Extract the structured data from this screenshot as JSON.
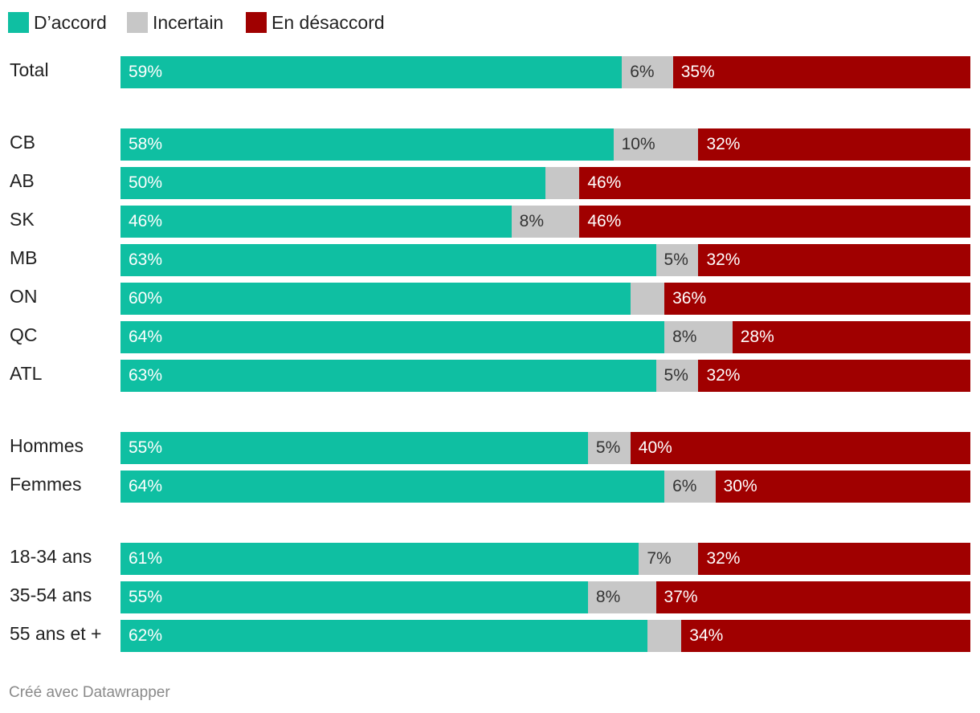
{
  "chart_data": {
    "type": "stacked-bar-horizontal",
    "unit": "%",
    "series": [
      {
        "name": "D’accord",
        "color": "#0fbfa2"
      },
      {
        "name": "Incertain",
        "color": "#c7c7c7"
      },
      {
        "name": "En désaccord",
        "color": "#a00000"
      }
    ],
    "rows": [
      {
        "label": "Total",
        "values": [
          59,
          6,
          35
        ],
        "labels": [
          "59%",
          "6%",
          "35%"
        ]
      },
      {
        "label": "CB",
        "values": [
          58,
          10,
          32
        ],
        "labels": [
          "58%",
          "10%",
          "32%"
        ]
      },
      {
        "label": "AB",
        "values": [
          50,
          4,
          46
        ],
        "labels": [
          "50%",
          "",
          "46%"
        ]
      },
      {
        "label": "SK",
        "values": [
          46,
          8,
          46
        ],
        "labels": [
          "46%",
          "8%",
          "46%"
        ]
      },
      {
        "label": "MB",
        "values": [
          63,
          5,
          32
        ],
        "labels": [
          "63%",
          "5%",
          "32%"
        ]
      },
      {
        "label": "ON",
        "values": [
          60,
          4,
          36
        ],
        "labels": [
          "60%",
          "",
          "36%"
        ]
      },
      {
        "label": "QC",
        "values": [
          64,
          8,
          28
        ],
        "labels": [
          "64%",
          "8%",
          "28%"
        ]
      },
      {
        "label": "ATL",
        "values": [
          63,
          5,
          32
        ],
        "labels": [
          "63%",
          "5%",
          "32%"
        ]
      },
      {
        "label": "Hommes",
        "values": [
          55,
          5,
          40
        ],
        "labels": [
          "55%",
          "5%",
          "40%"
        ]
      },
      {
        "label": "Femmes",
        "values": [
          64,
          6,
          30
        ],
        "labels": [
          "64%",
          "6%",
          "30%"
        ]
      },
      {
        "label": "18-34 ans",
        "values": [
          61,
          7,
          32
        ],
        "labels": [
          "61%",
          "7%",
          "32%"
        ]
      },
      {
        "label": "35-54 ans",
        "values": [
          55,
          8,
          37
        ],
        "labels": [
          "55%",
          "8%",
          "37%"
        ]
      },
      {
        "label": "55 ans et +",
        "values": [
          62,
          4,
          34
        ],
        "labels": [
          "62%",
          "",
          "34%"
        ]
      }
    ],
    "label_colors": [
      "#ffffff",
      "#333333",
      "#ffffff"
    ]
  },
  "footer": "Créé avec Datawrapper"
}
